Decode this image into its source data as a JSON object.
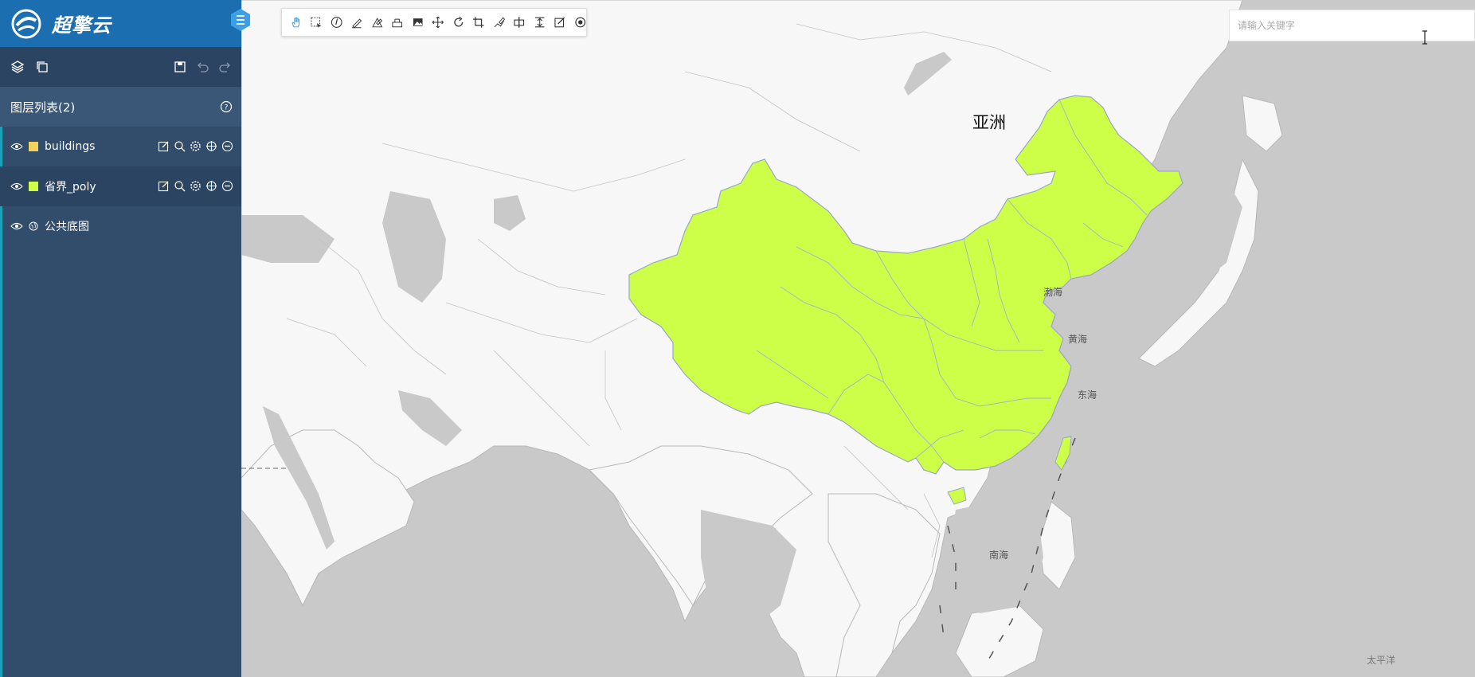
{
  "brand": {
    "name": "超擎云"
  },
  "sidebar": {
    "layers_title": "图层列表(2)",
    "layers": [
      {
        "name": "buildings",
        "swatch_color": "#f2d45c",
        "icon": "square-swatch"
      },
      {
        "name": "省界_poly",
        "swatch_color": "#cdff48",
        "icon": "square-swatch"
      },
      {
        "name": "公共底图",
        "icon": "basemap-globe-icon"
      }
    ]
  },
  "search": {
    "placeholder": "请输入关键字",
    "value": ""
  },
  "map": {
    "labels": {
      "asia": "亚洲",
      "bohai": "渤海",
      "yellow_sea": "黄海",
      "east_sea": "东海",
      "south_sea": "南海",
      "pacific": "太平洋"
    },
    "colors": {
      "land": "#f7f7f7",
      "water": "#c9c9c9",
      "highlight": "#cdff48",
      "border": "#9aa6c8"
    }
  },
  "colors": {
    "sidebar": "#324d6b",
    "brand_bar": "#1b6fb0",
    "accent": "#3da0e6"
  }
}
